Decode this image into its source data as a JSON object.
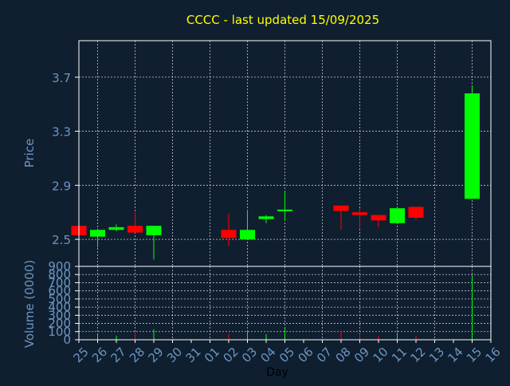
{
  "chart_data": {
    "type": "candlestick",
    "title": "CCCC - last updated 15/09/2025",
    "xlabel": "Day",
    "price_panel": {
      "ylabel": "Price",
      "ylim": [
        2.3,
        3.97
      ],
      "yticks": [
        2.5,
        2.9,
        3.3,
        3.7
      ],
      "ytick_labels": [
        "2.5",
        "2.9",
        "3.3",
        "3.7"
      ]
    },
    "volume_panel": {
      "ylabel": "Volume (0000)",
      "ylim": [
        0,
        900
      ],
      "yticks": [
        0,
        100,
        200,
        300,
        400,
        500,
        600,
        700,
        800,
        900
      ],
      "ytick_labels": [
        "0",
        "100",
        "200",
        "300",
        "400",
        "500",
        "600",
        "700",
        "800",
        "900"
      ]
    },
    "x_tick_labels": [
      "25",
      "26",
      "27",
      "28",
      "29",
      "30",
      "31",
      "01",
      "02",
      "03",
      "04",
      "05",
      "06",
      "07",
      "08",
      "09",
      "10",
      "11",
      "12",
      "13",
      "14",
      "15",
      "16"
    ],
    "x_grid_every": 2,
    "grid": true,
    "colors": {
      "background": "#0f1f30",
      "axes": "#ffffff",
      "grid": "#ffffff",
      "title": "#ffff00",
      "labels": "#6e95c0",
      "up": "#00ff00",
      "down": "#ff0000"
    },
    "candles": [
      {
        "day": "25",
        "open": 2.6,
        "high": 2.6,
        "low": 2.52,
        "close": 2.53
      },
      {
        "day": "26",
        "open": 2.52,
        "high": 2.58,
        "low": 2.44,
        "close": 2.57
      },
      {
        "day": "27",
        "open": 2.57,
        "high": 2.61,
        "low": 2.56,
        "close": 2.59
      },
      {
        "day": "28",
        "open": 2.6,
        "high": 2.7,
        "low": 2.55,
        "close": 2.55
      },
      {
        "day": "29",
        "open": 2.53,
        "high": 2.6,
        "low": 2.35,
        "close": 2.6
      },
      {
        "day": "02",
        "open": 2.57,
        "high": 2.69,
        "low": 2.45,
        "close": 2.51
      },
      {
        "day": "03",
        "open": 2.5,
        "high": 2.72,
        "low": 2.5,
        "close": 2.57
      },
      {
        "day": "04",
        "open": 2.65,
        "high": 2.68,
        "low": 2.62,
        "close": 2.67
      },
      {
        "day": "05",
        "open": 2.71,
        "high": 2.86,
        "low": 2.64,
        "close": 2.72
      },
      {
        "day": "08",
        "open": 2.75,
        "high": 2.75,
        "low": 2.57,
        "close": 2.71
      },
      {
        "day": "09",
        "open": 2.7,
        "high": 2.73,
        "low": 2.58,
        "close": 2.68
      },
      {
        "day": "10",
        "open": 2.68,
        "high": 2.68,
        "low": 2.59,
        "close": 2.64
      },
      {
        "day": "11",
        "open": 2.62,
        "high": 2.73,
        "low": 2.62,
        "close": 2.73
      },
      {
        "day": "12",
        "open": 2.74,
        "high": 2.74,
        "low": 2.64,
        "close": 2.66
      },
      {
        "day": "15",
        "open": 2.8,
        "high": 3.64,
        "low": 2.8,
        "close": 3.58
      }
    ],
    "volume": [
      {
        "day": "25",
        "value": 40,
        "direction": "down"
      },
      {
        "day": "26",
        "value": 60,
        "direction": "up"
      },
      {
        "day": "27",
        "value": 50,
        "direction": "up"
      },
      {
        "day": "28",
        "value": 90,
        "direction": "down"
      },
      {
        "day": "29",
        "value": 130,
        "direction": "up"
      },
      {
        "day": "02",
        "value": 70,
        "direction": "down"
      },
      {
        "day": "03",
        "value": 110,
        "direction": "up"
      },
      {
        "day": "04",
        "value": 70,
        "direction": "up"
      },
      {
        "day": "05",
        "value": 140,
        "direction": "up"
      },
      {
        "day": "08",
        "value": 110,
        "direction": "down"
      },
      {
        "day": "09",
        "value": 70,
        "direction": "down"
      },
      {
        "day": "10",
        "value": 50,
        "direction": "down"
      },
      {
        "day": "11",
        "value": 90,
        "direction": "up"
      },
      {
        "day": "12",
        "value": 50,
        "direction": "down"
      },
      {
        "day": "15",
        "value": 790,
        "direction": "up"
      }
    ]
  }
}
